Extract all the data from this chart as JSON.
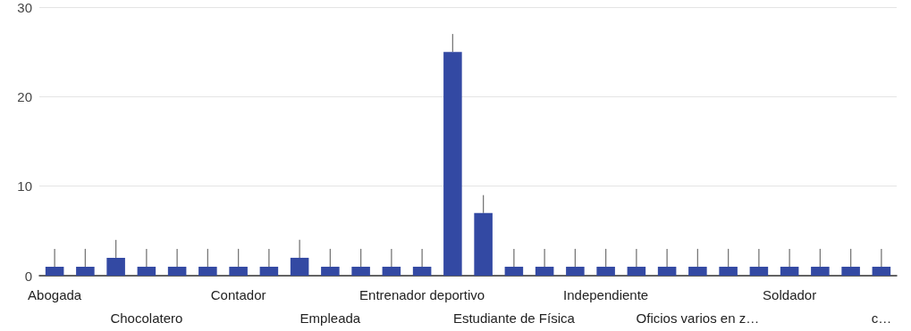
{
  "chart_data": {
    "type": "bar",
    "categories": [
      "Abogada",
      null,
      null,
      "Chocolatero",
      null,
      null,
      "Contador",
      null,
      null,
      "Empleada",
      null,
      null,
      "Entrenador deportivo",
      null,
      null,
      "Estudiante de Física",
      null,
      null,
      "Independiente",
      null,
      null,
      "Oficios varios en z…",
      null,
      null,
      "Soldador",
      null,
      null,
      "c…"
    ],
    "values": [
      1,
      1,
      2,
      1,
      1,
      1,
      1,
      1,
      2,
      1,
      1,
      1,
      1,
      25,
      7,
      1,
      1,
      1,
      1,
      1,
      1,
      1,
      1,
      1,
      1,
      1,
      1,
      1
    ],
    "errors": [
      [
        1,
        3
      ],
      [
        1,
        3
      ],
      [
        2,
        4
      ],
      [
        1,
        3
      ],
      [
        1,
        3
      ],
      [
        1,
        3
      ],
      [
        1,
        3
      ],
      [
        1,
        3
      ],
      [
        2,
        4
      ],
      [
        1,
        3
      ],
      [
        1,
        3
      ],
      [
        1,
        3
      ],
      [
        1,
        3
      ],
      [
        25,
        27
      ],
      [
        7,
        9
      ],
      [
        1,
        3
      ],
      [
        1,
        3
      ],
      [
        1,
        3
      ],
      [
        1,
        3
      ],
      [
        1,
        3
      ],
      [
        1,
        3
      ],
      [
        1,
        3
      ],
      [
        1,
        3
      ],
      [
        1,
        3
      ],
      [
        1,
        3
      ],
      [
        1,
        3
      ],
      [
        1,
        3
      ],
      [
        1,
        3
      ]
    ],
    "color": "#3349a3",
    "ylim": [
      0,
      30
    ],
    "yticks": [
      0,
      10,
      20,
      30
    ],
    "grid": true
  }
}
